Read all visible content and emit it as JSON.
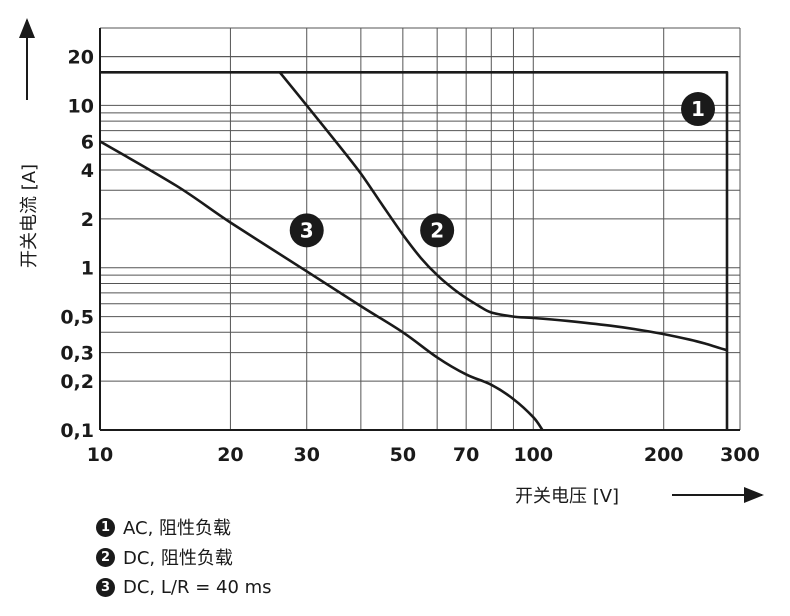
{
  "chart_data": {
    "type": "line",
    "xscale": "log",
    "yscale": "log",
    "xlim": [
      10,
      300
    ],
    "ylim": [
      0.1,
      30
    ],
    "xlabel": "开关电压 [V]",
    "ylabel": "开关电流 [A]",
    "x_ticks": [
      10,
      20,
      30,
      50,
      70,
      100,
      200,
      300
    ],
    "x_tick_labels": [
      "10",
      "20",
      "30",
      "50",
      "70",
      "100",
      "200",
      "300"
    ],
    "y_ticks": [
      0.1,
      0.2,
      0.3,
      0.5,
      1,
      2,
      4,
      6,
      10,
      20
    ],
    "y_tick_labels": [
      "0,1",
      "0,2",
      "0,3",
      "0,5",
      "1",
      "2",
      "4",
      "6",
      "10",
      "20"
    ],
    "grid": true,
    "series": [
      {
        "marker": "1",
        "name": "AC, 阻性负载",
        "x": [
          10,
          280,
          280
        ],
        "y": [
          16,
          16,
          0.1
        ]
      },
      {
        "marker": "2",
        "name": "DC, 阻性负载",
        "x": [
          26,
          30,
          35,
          40,
          45,
          50,
          55,
          60,
          65,
          70,
          75,
          80,
          90,
          100,
          120,
          150,
          180,
          200,
          230,
          250,
          280
        ],
        "y": [
          16,
          10,
          6,
          3.8,
          2.4,
          1.6,
          1.15,
          0.9,
          0.75,
          0.65,
          0.58,
          0.53,
          0.5,
          0.49,
          0.47,
          0.44,
          0.41,
          0.39,
          0.36,
          0.34,
          0.31
        ]
      },
      {
        "marker": "3",
        "name": "DC, L/R = 40 ms",
        "x": [
          10,
          15,
          20,
          30,
          40,
          50,
          60,
          70,
          80,
          90,
          100,
          105
        ],
        "y": [
          6,
          3.2,
          1.9,
          0.95,
          0.58,
          0.4,
          0.28,
          0.22,
          0.19,
          0.155,
          0.12,
          0.1
        ]
      }
    ],
    "markers": [
      {
        "label": "1",
        "x": 240,
        "y": 9.5
      },
      {
        "label": "2",
        "x": 60,
        "y": 1.7
      },
      {
        "label": "3",
        "x": 30,
        "y": 1.7
      }
    ]
  },
  "legend": [
    {
      "badge": "1",
      "text": "AC, 阻性负载"
    },
    {
      "badge": "2",
      "text": "DC, 阻性负载"
    },
    {
      "badge": "3",
      "text": "DC, L/R = 40 ms"
    }
  ]
}
